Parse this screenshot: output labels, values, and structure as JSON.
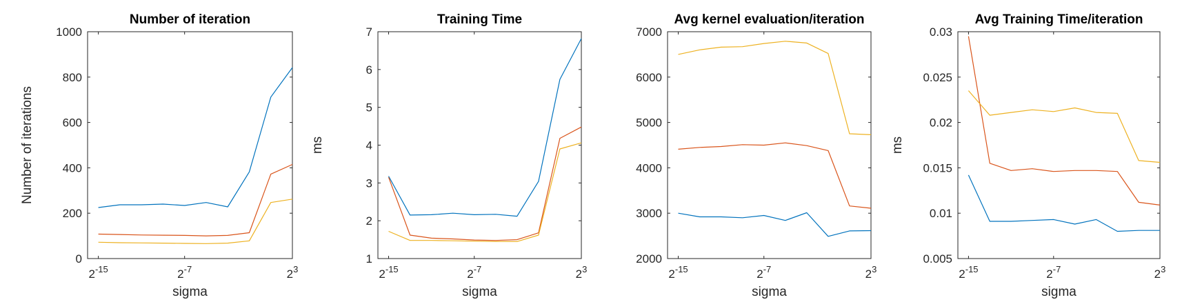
{
  "chart_data": [
    {
      "type": "line",
      "title": "Number of iteration",
      "xlabel": "sigma",
      "ylabel": "Number of iterations",
      "x_scale": "log2",
      "x_range_exp": [
        -16,
        3
      ],
      "xticks": [
        {
          "base": "2",
          "exp": "-15"
        },
        {
          "base": "2",
          "exp": "-7"
        },
        {
          "base": "2",
          "exp": "3"
        }
      ],
      "ylim": [
        0,
        1000
      ],
      "yticks": [
        "0",
        "200",
        "400",
        "600",
        "800",
        "1000"
      ],
      "x_exp": [
        -15,
        -13,
        -11,
        -9,
        -7,
        -5,
        -3,
        -1,
        1,
        3
      ],
      "series": [
        {
          "color": "#0072BD",
          "values": [
            225,
            237,
            237,
            240,
            234,
            247,
            228,
            382,
            712,
            842
          ]
        },
        {
          "color": "#D95319",
          "values": [
            108,
            106,
            104,
            103,
            102,
            100,
            102,
            114,
            372,
            415
          ]
        },
        {
          "color": "#EDB120",
          "values": [
            72,
            70,
            69,
            68,
            67,
            66,
            68,
            78,
            247,
            262
          ]
        }
      ]
    },
    {
      "type": "line",
      "title": "Training Time",
      "xlabel": "sigma",
      "ylabel": "ms",
      "x_scale": "log2",
      "x_range_exp": [
        -16,
        3
      ],
      "xticks": [
        {
          "base": "2",
          "exp": "-15"
        },
        {
          "base": "2",
          "exp": "-7"
        },
        {
          "base": "2",
          "exp": "3"
        }
      ],
      "ylim": [
        1,
        7
      ],
      "yticks": [
        "1",
        "2",
        "3",
        "4",
        "5",
        "6",
        "7"
      ],
      "x_exp": [
        -15,
        -13,
        -11,
        -9,
        -7,
        -5,
        -3,
        -1,
        1,
        3
      ],
      "series": [
        {
          "color": "#0072BD",
          "values": [
            3.18,
            2.15,
            2.16,
            2.2,
            2.16,
            2.17,
            2.12,
            3.04,
            5.74,
            6.82
          ]
        },
        {
          "color": "#D95319",
          "values": [
            3.15,
            1.62,
            1.54,
            1.52,
            1.49,
            1.48,
            1.5,
            1.68,
            4.18,
            4.48
          ]
        },
        {
          "color": "#EDB120",
          "values": [
            1.72,
            1.48,
            1.48,
            1.47,
            1.46,
            1.45,
            1.45,
            1.62,
            3.9,
            4.06
          ]
        }
      ]
    },
    {
      "type": "line",
      "title": "Avg kernel evaluation/iteration",
      "xlabel": "sigma",
      "ylabel": "",
      "x_scale": "log2",
      "x_range_exp": [
        -16,
        3
      ],
      "xticks": [
        {
          "base": "2",
          "exp": "-15"
        },
        {
          "base": "2",
          "exp": "-7"
        },
        {
          "base": "2",
          "exp": "3"
        }
      ],
      "ylim": [
        2000,
        7000
      ],
      "yticks": [
        "2000",
        "3000",
        "4000",
        "5000",
        "6000",
        "7000"
      ],
      "x_exp": [
        -15,
        -13,
        -11,
        -9,
        -7,
        -5,
        -3,
        -1,
        1,
        3
      ],
      "series": [
        {
          "color": "#0072BD",
          "values": [
            3000,
            2920,
            2920,
            2900,
            2950,
            2840,
            3010,
            2490,
            2610,
            2615
          ]
        },
        {
          "color": "#D95319",
          "values": [
            4410,
            4450,
            4470,
            4510,
            4500,
            4550,
            4490,
            4380,
            3160,
            3110
          ]
        },
        {
          "color": "#EDB120",
          "values": [
            6500,
            6600,
            6660,
            6670,
            6740,
            6790,
            6750,
            6520,
            4750,
            4730
          ]
        }
      ]
    },
    {
      "type": "line",
      "title": "Avg Training Time/iteration",
      "xlabel": "sigma",
      "ylabel": "ms",
      "x_scale": "log2",
      "x_range_exp": [
        -16,
        3
      ],
      "xticks": [
        {
          "base": "2",
          "exp": "-15"
        },
        {
          "base": "2",
          "exp": "-7"
        },
        {
          "base": "2",
          "exp": "3"
        }
      ],
      "ylim": [
        0.005,
        0.03
      ],
      "yticks": [
        "0.005",
        "0.01",
        "0.015",
        "0.02",
        "0.025",
        "0.03"
      ],
      "x_exp": [
        -15,
        -13,
        -11,
        -9,
        -7,
        -5,
        -3,
        -1,
        1,
        3
      ],
      "series": [
        {
          "color": "#0072BD",
          "values": [
            0.0142,
            0.0091,
            0.0091,
            0.0092,
            0.0093,
            0.0088,
            0.0093,
            0.008,
            0.0081,
            0.0081
          ]
        },
        {
          "color": "#D95319",
          "values": [
            0.0295,
            0.0155,
            0.0147,
            0.0149,
            0.0146,
            0.0147,
            0.0147,
            0.0146,
            0.0112,
            0.0109
          ]
        },
        {
          "color": "#EDB120",
          "values": [
            0.0235,
            0.0208,
            0.0211,
            0.0214,
            0.0212,
            0.0216,
            0.0211,
            0.021,
            0.0158,
            0.0156
          ]
        }
      ]
    }
  ]
}
